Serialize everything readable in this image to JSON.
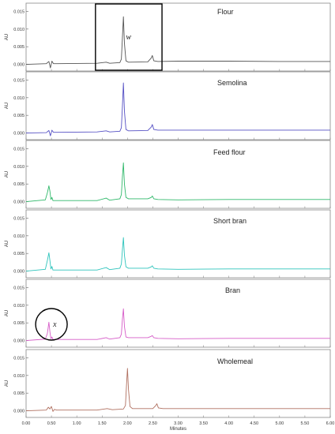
{
  "chart_data": {
    "type": "line",
    "xlabel": "Minutes",
    "ylabel": "AU",
    "xlim": [
      0.0,
      6.0
    ],
    "ylim": [
      -0.001,
      0.016
    ],
    "x_ticks": [
      "0.00",
      "0.50",
      "1.00",
      "1.50",
      "2.00",
      "2.50",
      "3.00",
      "3.50",
      "4.00",
      "4.50",
      "5.00",
      "5.50",
      "6.00"
    ],
    "y_ticks": [
      "0.000",
      "0.005",
      "0.010",
      "0.015"
    ],
    "grid": false,
    "panels": [
      {
        "title": "Flour",
        "color": "#555555",
        "points": [
          [
            0.0,
            0.0
          ],
          [
            0.4,
            0.0002
          ],
          [
            0.45,
            0.0008
          ],
          [
            0.48,
            -0.001
          ],
          [
            0.51,
            0.0009
          ],
          [
            0.54,
            0.0002
          ],
          [
            0.6,
            0.0002
          ],
          [
            1.4,
            0.0003
          ],
          [
            1.58,
            0.0006
          ],
          [
            1.65,
            0.0003
          ],
          [
            1.85,
            0.0005
          ],
          [
            1.88,
            0.0015
          ],
          [
            1.9,
            0.0075
          ],
          [
            1.92,
            0.0135
          ],
          [
            1.94,
            0.006
          ],
          [
            1.97,
            0.001
          ],
          [
            2.02,
            0.0006
          ],
          [
            2.4,
            0.0007
          ],
          [
            2.47,
            0.0018
          ],
          [
            2.49,
            0.0025
          ],
          [
            2.52,
            0.001
          ],
          [
            2.6,
            0.0008
          ],
          [
            3.0,
            0.0009
          ],
          [
            4.0,
            0.0009
          ],
          [
            5.0,
            0.0008
          ],
          [
            6.0,
            0.0008
          ]
        ],
        "annotation": {
          "label": "w",
          "shape": "rectangle",
          "x_range": [
            1.4,
            2.65
          ]
        }
      },
      {
        "title": "Semolina",
        "color": "#5550c4",
        "points": [
          [
            0.0,
            0.0
          ],
          [
            0.4,
            0.0001
          ],
          [
            0.45,
            0.0007
          ],
          [
            0.48,
            -0.0008
          ],
          [
            0.51,
            0.0008
          ],
          [
            0.54,
            0.0002
          ],
          [
            0.6,
            0.0002
          ],
          [
            1.4,
            0.0003
          ],
          [
            1.58,
            0.0006
          ],
          [
            1.65,
            0.0003
          ],
          [
            1.85,
            0.0005
          ],
          [
            1.88,
            0.0015
          ],
          [
            1.9,
            0.0075
          ],
          [
            1.92,
            0.0142
          ],
          [
            1.94,
            0.0062
          ],
          [
            1.97,
            0.001
          ],
          [
            2.02,
            0.0006
          ],
          [
            2.4,
            0.0007
          ],
          [
            2.47,
            0.0017
          ],
          [
            2.49,
            0.0024
          ],
          [
            2.52,
            0.001
          ],
          [
            2.6,
            0.0008
          ],
          [
            3.0,
            0.0008
          ],
          [
            4.0,
            0.0008
          ],
          [
            5.0,
            0.0008
          ],
          [
            6.0,
            0.0008
          ]
        ]
      },
      {
        "title": "Feed flour",
        "color": "#2fb86a",
        "points": [
          [
            0.0,
            0.0
          ],
          [
            0.38,
            0.0005
          ],
          [
            0.42,
            0.0025
          ],
          [
            0.45,
            0.0045
          ],
          [
            0.47,
            0.003
          ],
          [
            0.49,
            0.0006
          ],
          [
            0.51,
            0.0012
          ],
          [
            0.53,
            0.0003
          ],
          [
            0.6,
            0.0003
          ],
          [
            1.4,
            0.0003
          ],
          [
            1.58,
            0.001
          ],
          [
            1.65,
            0.0004
          ],
          [
            1.85,
            0.0008
          ],
          [
            1.88,
            0.002
          ],
          [
            1.9,
            0.007
          ],
          [
            1.92,
            0.011
          ],
          [
            1.94,
            0.005
          ],
          [
            1.97,
            0.0012
          ],
          [
            2.02,
            0.0008
          ],
          [
            2.4,
            0.0008
          ],
          [
            2.47,
            0.0012
          ],
          [
            2.49,
            0.0016
          ],
          [
            2.52,
            0.0008
          ],
          [
            2.6,
            0.0006
          ],
          [
            3.0,
            0.0005
          ],
          [
            4.0,
            0.0006
          ],
          [
            5.0,
            0.0006
          ],
          [
            6.0,
            0.0006
          ]
        ]
      },
      {
        "title": "Short bran",
        "color": "#2ec4bc",
        "points": [
          [
            0.0,
            0.0
          ],
          [
            0.38,
            0.0005
          ],
          [
            0.42,
            0.003
          ],
          [
            0.45,
            0.0052
          ],
          [
            0.47,
            0.003
          ],
          [
            0.49,
            0.0006
          ],
          [
            0.51,
            0.0013
          ],
          [
            0.53,
            0.0003
          ],
          [
            0.6,
            0.0003
          ],
          [
            1.4,
            0.0003
          ],
          [
            1.58,
            0.001
          ],
          [
            1.65,
            0.0004
          ],
          [
            1.85,
            0.0008
          ],
          [
            1.88,
            0.002
          ],
          [
            1.9,
            0.006
          ],
          [
            1.92,
            0.0095
          ],
          [
            1.94,
            0.0045
          ],
          [
            1.97,
            0.0012
          ],
          [
            2.02,
            0.0008
          ],
          [
            2.4,
            0.0008
          ],
          [
            2.47,
            0.0012
          ],
          [
            2.49,
            0.0015
          ],
          [
            2.52,
            0.0008
          ],
          [
            2.6,
            0.0006
          ],
          [
            3.0,
            0.0005
          ],
          [
            4.0,
            0.0006
          ],
          [
            5.0,
            0.0006
          ],
          [
            6.0,
            0.0006
          ]
        ]
      },
      {
        "title": "Bran",
        "color": "#d65cc8",
        "points": [
          [
            0.0,
            0.0
          ],
          [
            0.38,
            0.0004
          ],
          [
            0.42,
            0.002
          ],
          [
            0.45,
            0.0052
          ],
          [
            0.47,
            0.0025
          ],
          [
            0.49,
            0.0005
          ],
          [
            0.51,
            0.001
          ],
          [
            0.53,
            0.0003
          ],
          [
            0.6,
            0.0003
          ],
          [
            1.4,
            0.0003
          ],
          [
            1.58,
            0.0008
          ],
          [
            1.65,
            0.0004
          ],
          [
            1.85,
            0.0008
          ],
          [
            1.88,
            0.0018
          ],
          [
            1.9,
            0.006
          ],
          [
            1.92,
            0.009
          ],
          [
            1.94,
            0.004
          ],
          [
            1.97,
            0.001
          ],
          [
            2.02,
            0.0008
          ],
          [
            2.4,
            0.0008
          ],
          [
            2.47,
            0.0012
          ],
          [
            2.49,
            0.0014
          ],
          [
            2.52,
            0.0008
          ],
          [
            2.6,
            0.0006
          ],
          [
            3.0,
            0.0005
          ],
          [
            4.0,
            0.0006
          ],
          [
            5.0,
            0.0006
          ],
          [
            6.0,
            0.0006
          ]
        ],
        "annotation": {
          "label": "x",
          "shape": "circle",
          "x_center": 0.5
        }
      },
      {
        "title": "Wholemeal",
        "color": "#b07060",
        "points": [
          [
            0.0,
            0.0
          ],
          [
            0.4,
            0.0002
          ],
          [
            0.44,
            0.001
          ],
          [
            0.47,
            0.0005
          ],
          [
            0.5,
            0.0012
          ],
          [
            0.53,
            -0.0002
          ],
          [
            0.56,
            0.0004
          ],
          [
            0.6,
            0.0002
          ],
          [
            1.4,
            0.0002
          ],
          [
            1.6,
            0.0006
          ],
          [
            1.7,
            0.0003
          ],
          [
            1.92,
            0.0005
          ],
          [
            1.96,
            0.0015
          ],
          [
            1.98,
            0.007
          ],
          [
            2.0,
            0.012
          ],
          [
            2.02,
            0.006
          ],
          [
            2.05,
            0.0012
          ],
          [
            2.1,
            0.0006
          ],
          [
            2.5,
            0.0006
          ],
          [
            2.56,
            0.0015
          ],
          [
            2.58,
            0.002
          ],
          [
            2.61,
            0.0008
          ],
          [
            2.7,
            0.0006
          ],
          [
            3.0,
            0.0006
          ],
          [
            4.0,
            0.0006
          ],
          [
            5.0,
            0.0006
          ],
          [
            6.0,
            0.0006
          ]
        ]
      }
    ]
  }
}
